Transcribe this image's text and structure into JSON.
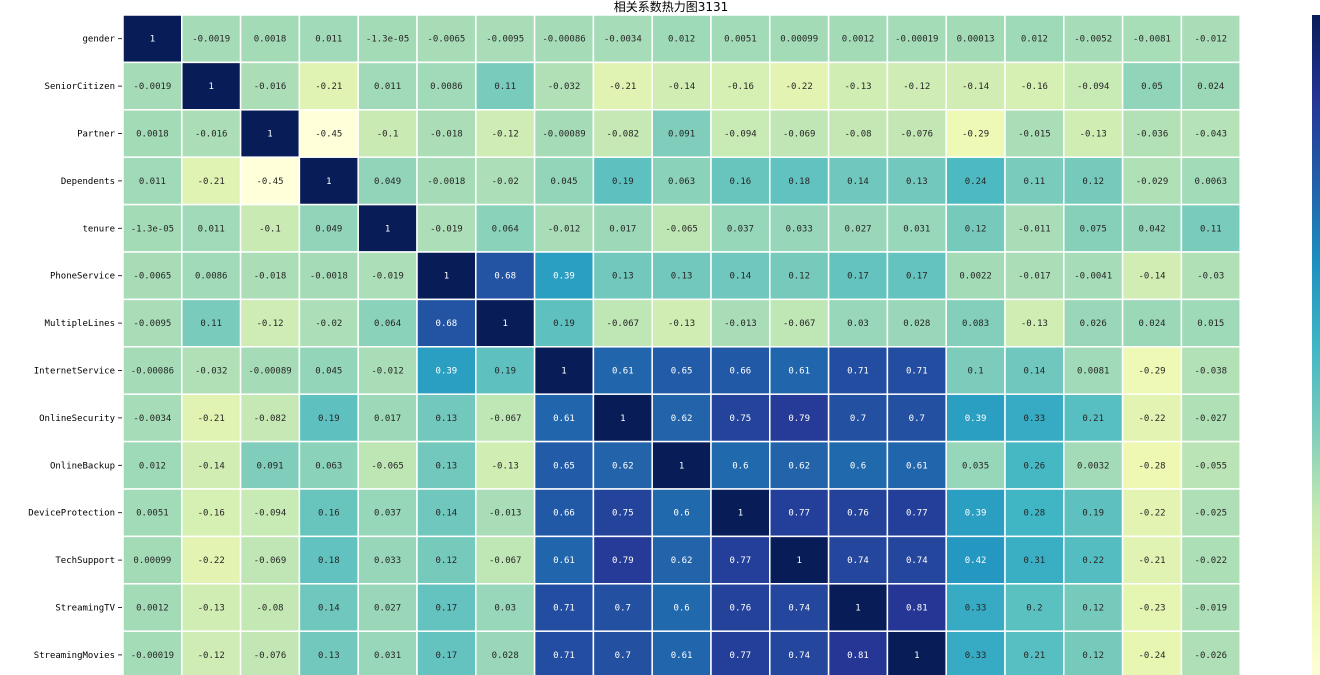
{
  "chart_data": {
    "type": "heatmap",
    "title": "相关系数热力图3131",
    "xlabel": "",
    "ylabel": "",
    "row_labels": [
      "gender",
      "SeniorCitizen",
      "Partner",
      "Dependents",
      "tenure",
      "PhoneService",
      "MultipleLines",
      "InternetService",
      "OnlineSecurity",
      "OnlineBackup",
      "DeviceProtection",
      "TechSupport",
      "StreamingTV",
      "StreamingMovies"
    ],
    "n_columns": 19,
    "colormap": "YlGnBu",
    "vmin": -0.45,
    "vmax": 1,
    "cells": [
      [
        "1",
        "-0.0019",
        "0.0018",
        "0.011",
        "-1.3e-05",
        "-0.0065",
        "-0.0095",
        "-0.00086",
        "-0.0034",
        "0.012",
        "0.0051",
        "0.00099",
        "0.0012",
        "-0.00019",
        "0.00013",
        "0.012",
        "-0.0052",
        "-0.0081",
        "-0.012"
      ],
      [
        "-0.0019",
        "1",
        "-0.016",
        "-0.21",
        "0.011",
        "0.0086",
        "0.11",
        "-0.032",
        "-0.21",
        "-0.14",
        "-0.16",
        "-0.22",
        "-0.13",
        "-0.12",
        "-0.14",
        "-0.16",
        "-0.094",
        "0.05",
        "0.024"
      ],
      [
        "0.0018",
        "-0.016",
        "1",
        "-0.45",
        "-0.1",
        "-0.018",
        "-0.12",
        "-0.00089",
        "-0.082",
        "0.091",
        "-0.094",
        "-0.069",
        "-0.08",
        "-0.076",
        "-0.29",
        "-0.015",
        "-0.13",
        "-0.036",
        "-0.043"
      ],
      [
        "0.011",
        "-0.21",
        "-0.45",
        "1",
        "0.049",
        "-0.0018",
        "-0.02",
        "0.045",
        "0.19",
        "0.063",
        "0.16",
        "0.18",
        "0.14",
        "0.13",
        "0.24",
        "0.11",
        "0.12",
        "-0.029",
        "0.0063"
      ],
      [
        "-1.3e-05",
        "0.011",
        "-0.1",
        "0.049",
        "1",
        "-0.019",
        "0.064",
        "-0.012",
        "0.017",
        "-0.065",
        "0.037",
        "0.033",
        "0.027",
        "0.031",
        "0.12",
        "-0.011",
        "0.075",
        "0.042",
        "0.11"
      ],
      [
        "-0.0065",
        "0.0086",
        "-0.018",
        "-0.0018",
        "-0.019",
        "1",
        "0.68",
        "0.39",
        "0.13",
        "0.13",
        "0.14",
        "0.12",
        "0.17",
        "0.17",
        "0.0022",
        "-0.017",
        "-0.0041",
        "-0.14",
        "-0.03"
      ],
      [
        "-0.0095",
        "0.11",
        "-0.12",
        "-0.02",
        "0.064",
        "0.68",
        "1",
        "0.19",
        "-0.067",
        "-0.13",
        "-0.013",
        "-0.067",
        "0.03",
        "0.028",
        "0.083",
        "-0.13",
        "0.026",
        "0.024",
        "0.015"
      ],
      [
        "-0.00086",
        "-0.032",
        "-0.00089",
        "0.045",
        "-0.012",
        "0.39",
        "0.19",
        "1",
        "0.61",
        "0.65",
        "0.66",
        "0.61",
        "0.71",
        "0.71",
        "0.1",
        "0.14",
        "0.0081",
        "-0.29",
        "-0.038"
      ],
      [
        "-0.0034",
        "-0.21",
        "-0.082",
        "0.19",
        "0.017",
        "0.13",
        "-0.067",
        "0.61",
        "1",
        "0.62",
        "0.75",
        "0.79",
        "0.7",
        "0.7",
        "0.39",
        "0.33",
        "0.21",
        "-0.22",
        "-0.027"
      ],
      [
        "0.012",
        "-0.14",
        "0.091",
        "0.063",
        "-0.065",
        "0.13",
        "-0.13",
        "0.65",
        "0.62",
        "1",
        "0.6",
        "0.62",
        "0.6",
        "0.61",
        "0.035",
        "0.26",
        "0.0032",
        "-0.28",
        "-0.055"
      ],
      [
        "0.0051",
        "-0.16",
        "-0.094",
        "0.16",
        "0.037",
        "0.14",
        "-0.013",
        "0.66",
        "0.75",
        "0.6",
        "1",
        "0.77",
        "0.76",
        "0.77",
        "0.39",
        "0.28",
        "0.19",
        "-0.22",
        "-0.025"
      ],
      [
        "0.00099",
        "-0.22",
        "-0.069",
        "0.18",
        "0.033",
        "0.12",
        "-0.067",
        "0.61",
        "0.79",
        "0.62",
        "0.77",
        "1",
        "0.74",
        "0.74",
        "0.42",
        "0.31",
        "0.22",
        "-0.21",
        "-0.022"
      ],
      [
        "0.0012",
        "-0.13",
        "-0.08",
        "0.14",
        "0.027",
        "0.17",
        "0.03",
        "0.71",
        "0.7",
        "0.6",
        "0.76",
        "0.74",
        "1",
        "0.81",
        "0.33",
        "0.2",
        "0.12",
        "-0.23",
        "-0.019"
      ],
      [
        "-0.00019",
        "-0.12",
        "-0.076",
        "0.13",
        "0.031",
        "0.17",
        "0.028",
        "0.71",
        "0.7",
        "0.61",
        "0.77",
        "0.74",
        "0.81",
        "1",
        "0.33",
        "0.21",
        "0.12",
        "-0.24",
        "-0.026"
      ]
    ]
  }
}
